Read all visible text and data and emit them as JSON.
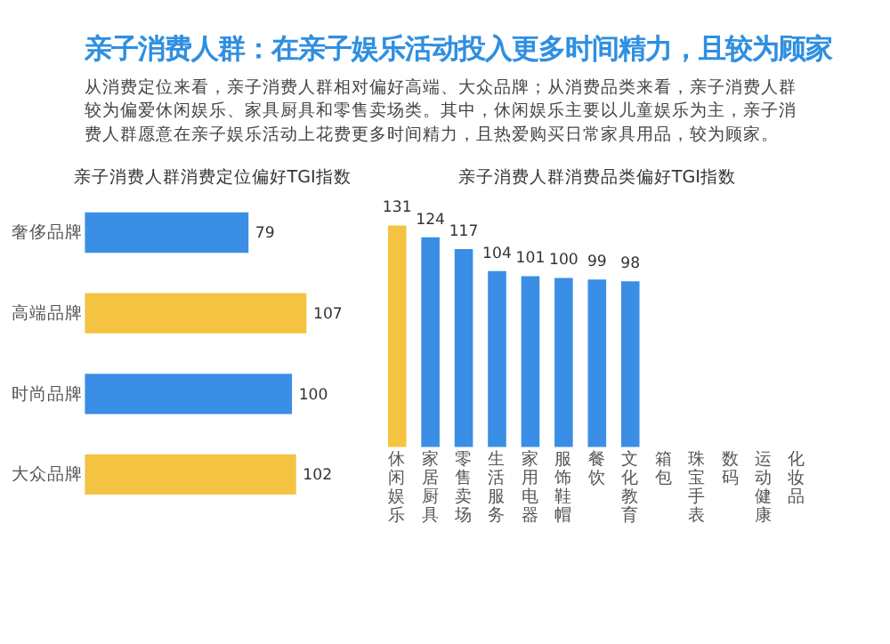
{
  "chart_data": [
    {
      "type": "other",
      "title": "亲子消费人群：在亲子娱乐活动投入更多时间精力，且较为顾家",
      "annotations": [
        "从消费定位来看，亲子消费人群相对偏好高端、大众品牌；从消费品类来看，亲子消费人群较为偏爱休闲娱乐、家具厨具和零售卖场类。其中，休闲娱乐主要以儿童娱乐为主，亲子消费人群愿意在亲子娱乐活动上花费更多时间精力，且热爱购买日常家具用品，较为顾家。"
      ]
    },
    {
      "type": "bar",
      "orientation": "horizontal",
      "title": "亲子消费人群消费定位偏好TGI指数",
      "data_labels": true,
      "categories": [
        "奢侈品牌",
        "高端品牌",
        "时尚品牌",
        "大众品牌"
      ],
      "values": [
        79,
        107,
        100,
        102
      ],
      "colors": [
        "#3a8ee6",
        "#f5c342",
        "#3a8ee6",
        "#f5c342"
      ]
    },
    {
      "type": "bar",
      "title": "亲子消费人群消费品类偏好TGI指数",
      "data_labels": true,
      "categories": [
        "休闲娱乐",
        "家居厨具",
        "零售卖场",
        "生活服务",
        "家用电器",
        "服饰鞋帽",
        "餐饮",
        "文化教育",
        "箱包",
        "珠宝手表",
        "数码",
        "运动健康",
        "化妆品"
      ],
      "values": [
        131,
        124,
        117,
        104,
        101,
        100,
        99,
        98,
        null,
        null,
        null,
        null,
        null
      ],
      "colors": [
        "#f5c342",
        "#3a8ee6",
        "#3a8ee6",
        "#3a8ee6",
        "#3a8ee6",
        "#3a8ee6",
        "#3a8ee6",
        "#3a8ee6",
        "#3a8ee6",
        "#3a8ee6",
        "#3a8ee6",
        "#3a8ee6",
        "#3a8ee6"
      ]
    }
  ]
}
